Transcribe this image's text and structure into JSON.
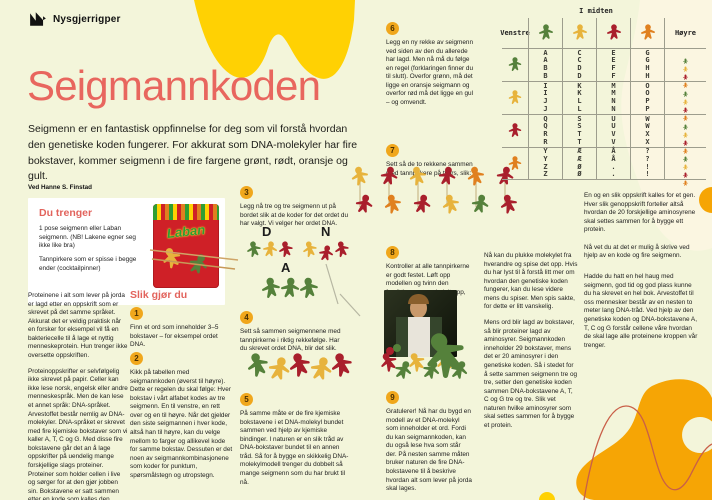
{
  "colors": {
    "green": "#55813b",
    "yellow": "#e7b33c",
    "red": "#a91f2c",
    "orange": "#e0801f",
    "accent": "#e2635c",
    "badge": "#f0a71c",
    "blob_yellow": "#ffd103",
    "blob_orange": "#f6a505",
    "background": "#f3f5da"
  },
  "header": {
    "brand": "Nysgjerrigper",
    "title": "Seigmannkoden",
    "intro": "Seigmenn er en fantastisk oppfinnelse for deg som vil forstå hvordan den genetiske koden fungerer. For akkurat som DNA-molekyler har fire bokstaver, kommer seigmenn i de fire fargene grønt, rødt, oransje og gult.",
    "byline": "Ved Hanne S. Finstad"
  },
  "you_need": {
    "heading": "Du trenger",
    "item1": "1 pose seigmenn eller Laban seigmenn. (NB! Lakene egner seg ikke like bra)",
    "item2": "Tannpirkere som er spisse i begge ender (cocktailpinner)",
    "bag_label": "Laban"
  },
  "intro_column": {
    "p1": "Proteinene i alt som lever på jorda er lagd etter en oppskrift som er skrevet på det samme språket. Akkurat det er veldig praktisk når en forsker for eksempel vil få en bakteriecelle til å lage et nyttig menneskeprotein. Hun trenger ikke oversette oppskriften.",
    "p2": "Proteinoppskrifter er selvfølgelig ikke skrevet på papir. Celler kan ikke lese norsk, engelsk eller andre menneskespråk. Men de kan lese et annet språk: DNA-språket. Arvestoffet består nemlig av DNA-molekyler. DNA-språket er skrevet med fire kjemiske bokstaver som vi kaller A, T, C og G. Med disse fire bokstavene går det an å lage oppskrifter på uendelig mange forskjellige slags proteiner. Proteiner som holder cellen i live og sørger for at den gjør jobben sin. Bokstavene er satt sammen etter en kode som kalles den genetiske koden."
  },
  "how_to": {
    "heading": "Slik gjør du",
    "steps": [
      {
        "num": "1",
        "text": "Finn et ord som inneholder 3–5 bokstaver – for eksempel ordet DNA."
      },
      {
        "num": "2",
        "text": "Kikk på tabellen med seigmannkoden (øverst til høyre). Dette er regelen du skal følge: Hver bokstav i vårt alfabet kodes av tre seigmenn. En til venstre, en rett over og en til høyre. Når det gjelder den siste seigmannen i hver kode, altså han til høyre, kan du velge mellom to farger og allikevel kode for samme bokstav. Dessuten er det noen av seigmannkombinasjonene som koder for punktum, spørsmålstegn og utropstegn."
      },
      {
        "num": "3",
        "text": "Legg nå tre og tre seigmenn ut på bordet slik at de koder for det ordet du har valgt. Vi velger her ordet DNA."
      },
      {
        "num": "4",
        "text": "Sett så sammen seigmennene med tannpirkerne i riktig rekkefølge. Har du skrevet ordet DNA, blir det slik."
      },
      {
        "num": "5",
        "text": "På samme måte er de fire kjemiske bokstavene i et DNA-molekyl bundet sammen ved hjelp av kjemiske bindinger. I naturen er en slik tråd av DNA-bokstaver bundet til en annen tråd. Så for å bygge en skikkelig DNA-molekylmodell trenger du dobbelt så mange seigmenn som du har brukt til nå."
      },
      {
        "num": "6",
        "text": "Legg en ny rekke av seigmenn ved siden av den du allerede har lagd. Men nå må du følge en regel (forklaringen finner du til slutt). Overfor grønn, må det ligge en oransje seigmann og overfor rød må det ligge en gul – og omvendt."
      },
      {
        "num": "7",
        "text": "Sett så de to rekkene sammen med tannpirkere på tvers, slik:"
      },
      {
        "num": "8",
        "text": "Kontroller at alle tannpirkerne er godt festet. Løft opp modellen og tvinn den forsiktig som en vindeltrapp, slik:"
      },
      {
        "num": "9",
        "text": "Gratulerer! Nå har du bygd en modell av et DNA-molekyl som inneholder et ord. Fordi du kan seigmannkoden, kan du også lese hva som står der. På nesten samme måten bruker naturen de fire DNA-bokstavene til å beskrive hvordan alt som lever på jorda skal lages."
      }
    ]
  },
  "dna_demo": {
    "groups": [
      {
        "letter": "D",
        "colors": [
          "green",
          "yellow",
          "red"
        ]
      },
      {
        "letter": "N",
        "colors": [
          "yellow",
          "red",
          "red"
        ]
      },
      {
        "letter": "A",
        "colors": [
          "green",
          "green",
          "green"
        ]
      }
    ]
  },
  "chains": {
    "single": [
      "green",
      "yellow",
      "red",
      "yellow",
      "red"
    ],
    "ladder_top": [
      "yellow",
      "red",
      "yellow",
      "red",
      "orange",
      "red"
    ],
    "ladder_bottom": [
      "red",
      "orange",
      "red",
      "yellow",
      "green",
      "red"
    ],
    "twist": [
      "red",
      "green",
      "yellow",
      "green",
      "yellow",
      "green"
    ],
    "decor_gummy": "green"
  },
  "code_table": {
    "title": "I midten",
    "left_header": "Venstre",
    "right_header": "Høyre",
    "middle_colors": [
      "green",
      "yellow",
      "red",
      "orange"
    ],
    "right_colors": [
      "green",
      "yellow",
      "red",
      "orange"
    ],
    "rows": [
      {
        "left": "green",
        "cells": [
          "AABB",
          "CCDD",
          "EEFF",
          "GGHH"
        ]
      },
      {
        "left": "yellow",
        "cells": [
          "IIJJ",
          "KKLL",
          "MMNN",
          "OOPP"
        ]
      },
      {
        "left": "red",
        "cells": [
          "QQRR",
          "SSTT",
          "UUVV",
          "WWXX"
        ]
      },
      {
        "left": "orange",
        "cells": [
          "YYZZ",
          "ÆÆØØ",
          "ÅÅ..",
          "??!!"
        ]
      }
    ]
  },
  "closing": {
    "col_a": {
      "p1": "Nå kan du plukke molekylet fra hverandre og spise det opp. Hvis du har lyst til å forstå litt mer om hvordan den genetiske koden fungerer, kan du lese videre mens du spiser. Men spis sakte, for dette er litt vanskelig.",
      "p2": "Mens ord blir lagd av bokstaver, så blir proteiner lagd av aminosyrer. Seigmannkoden inneholder 29 bokstaver, mens det er 20 aminosyrer i den genetiske koden. Så i stedet for å sette sammen seigmenn tre og tre, setter den genetiske koden sammen DNA-bokstavene A, T, C og G tre og tre. Slik vet naturen hvilke aminosyrer som skal settes sammen for å bygge et protein."
    },
    "col_b": {
      "p1": "En og en slik oppskrift kalles for et gen. Hver slik genoppskrift forteller altså hvordan de 20 forskjellige aminosyrene skal settes sammen for å bygge ett protein.",
      "p2": "Nå vet du at det er mulig å skrive ved hjelp av en kode og fire seigmenn.",
      "p3": "Hadde du hatt en hel haug med seigmenn, god tid og god plass kunne du ha skrevet en hel bok. Arvestoffet til oss mennesker består av en nesten to meter lang DNA-tråd. Ved hjelp av den genetiske koden og DNA-bokstavene A, T, C og G forstår cellene våre hvordan de skal lage alle proteinene kroppen vår trenger."
    }
  }
}
